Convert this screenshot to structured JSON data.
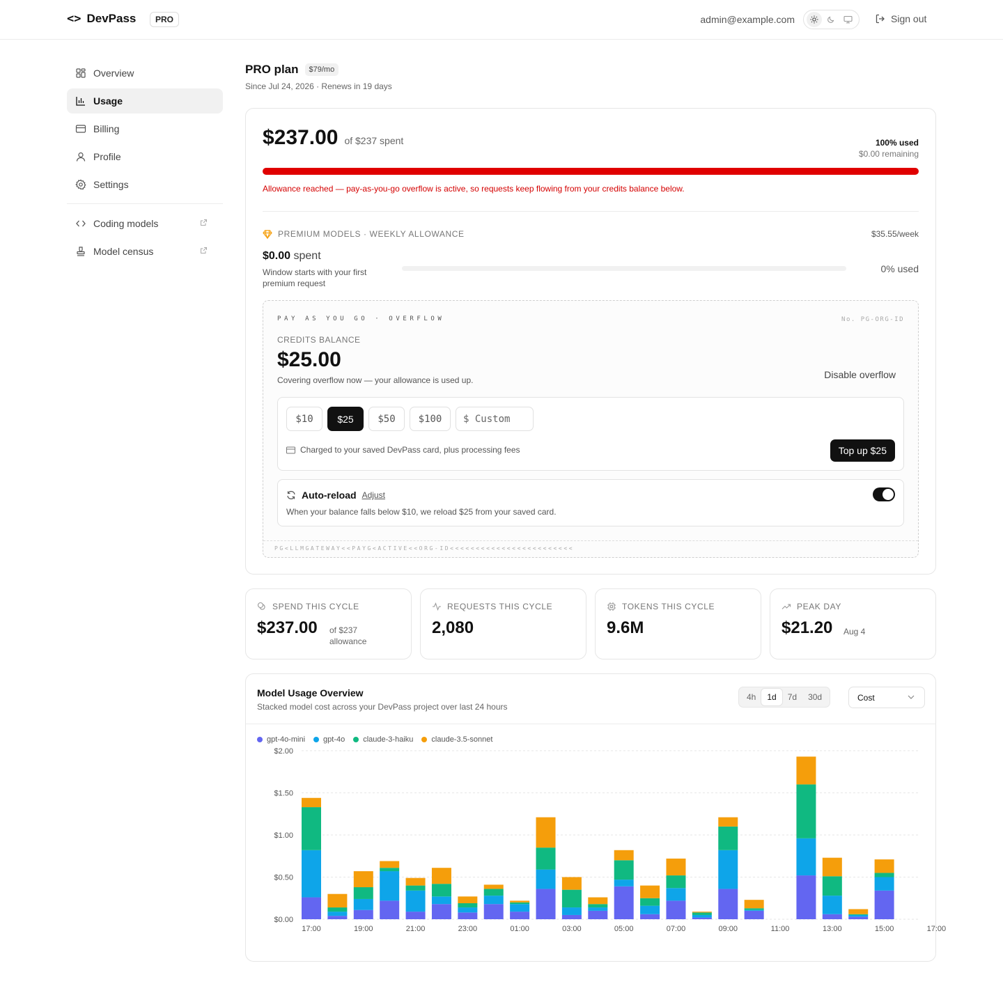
{
  "header": {
    "brand": "DevPass",
    "brand_icon": "code-brackets-icon",
    "plan_badge": "PRO",
    "user_email": "admin@example.com",
    "theme_options": [
      "sun-icon",
      "moon-icon",
      "monitor-icon"
    ],
    "theme_selected": "light",
    "sign_out": "Sign out"
  },
  "sidebar": {
    "items": [
      {
        "label": "Overview",
        "icon": "grid-icon",
        "active": false
      },
      {
        "label": "Usage",
        "icon": "bar-chart-icon",
        "active": true
      },
      {
        "label": "Billing",
        "icon": "credit-card-icon",
        "active": false
      },
      {
        "label": "Profile",
        "icon": "user-icon",
        "active": false
      },
      {
        "label": "Settings",
        "icon": "gear-icon",
        "active": false
      }
    ],
    "external": [
      {
        "label": "Coding models",
        "icon": "code-brackets-icon"
      },
      {
        "label": "Model census",
        "icon": "stamp-icon"
      }
    ]
  },
  "plan": {
    "title": "PRO plan",
    "price": "$79/mo",
    "subtitle": "Since Jul 24, 2026 · Renews in 19 days"
  },
  "usage": {
    "spent": "$237.00",
    "of_text": "of $237 spent",
    "used_pct": "100% used",
    "remaining": "$0.00 remaining",
    "fraction_used": 1.0,
    "bar_color": "#e00000",
    "alert": "Allowance reached — pay-as-you-go overflow is active, so requests keep flowing from your credits balance below."
  },
  "premium": {
    "label": "PREMIUM MODELS · WEEKLY ALLOWANCE",
    "rate": "$35.55/week",
    "spent_amount": "$0.00",
    "spent_word": "spent",
    "note": "Window starts with your first premium request",
    "used_pct": "0% used",
    "fraction_used": 0.0
  },
  "overflow": {
    "heading": "PAY AS YOU GO · OVERFLOW",
    "number": "No. PG-ORG-ID",
    "credits_label": "CREDITS BALANCE",
    "credits_amount": "$25.00",
    "credits_note": "Covering overflow now — your allowance is used up.",
    "disable": "Disable overflow",
    "amounts": [
      "$10",
      "$25",
      "$50",
      "$100"
    ],
    "selected_amount": "$25",
    "custom_placeholder": "$ Custom",
    "charge_note": "Charged to your saved DevPass card, plus processing fees",
    "topup_button": "Top up $25",
    "reload_title": "Auto-reload",
    "reload_adjust": "Adjust",
    "reload_note": "When your balance falls below $10, we reload $25 from your saved card.",
    "reload_enabled": true,
    "mrz": "PG<LLMGATEWAY<<PAYG<ACTIVE<<ORG-ID<<<<<<<<<<<<<<<<<<<<<<<<"
  },
  "stats": [
    {
      "label": "SPEND THIS CYCLE",
      "value": "$237.00",
      "sub": "of $237 allowance",
      "icon": "coins-icon"
    },
    {
      "label": "REQUESTS THIS CYCLE",
      "value": "2,080",
      "sub": "",
      "icon": "activity-icon"
    },
    {
      "label": "TOKENS THIS CYCLE",
      "value": "9.6M",
      "sub": "",
      "icon": "chip-icon"
    },
    {
      "label": "PEAK DAY",
      "value": "$21.20",
      "sub": "Aug 4",
      "icon": "trending-up-icon"
    }
  ],
  "chart": {
    "title": "Model Usage Overview",
    "subtitle": "Stacked model cost across your DevPass project over last 24 hours",
    "ranges": [
      "4h",
      "1d",
      "7d",
      "30d"
    ],
    "range_selected": "1d",
    "metric": "Cost"
  },
  "chart_data": {
    "type": "bar",
    "stacked": true,
    "x": [
      "17:00",
      "18:00",
      "19:00",
      "20:00",
      "21:00",
      "22:00",
      "23:00",
      "00:00",
      "01:00",
      "02:00",
      "03:00",
      "04:00",
      "05:00",
      "06:00",
      "07:00",
      "08:00",
      "09:00",
      "10:00",
      "11:00",
      "12:00",
      "13:00",
      "14:00",
      "15:00",
      "16:00"
    ],
    "x_tick_labels": [
      "17:00",
      "19:00",
      "21:00",
      "23:00",
      "01:00",
      "03:00",
      "05:00",
      "07:00",
      "09:00",
      "11:00",
      "13:00",
      "15:00",
      "17:00"
    ],
    "y_tick_labels": [
      "$0.00",
      "$0.50",
      "$1.00",
      "$1.50",
      "$2.00"
    ],
    "ylim": [
      0,
      2.0
    ],
    "grid": true,
    "legend_position": "top-left",
    "series": [
      {
        "name": "gpt-4o-mini",
        "color": "#6366f1",
        "values": [
          0.26,
          0.04,
          0.11,
          0.22,
          0.09,
          0.18,
          0.08,
          0.18,
          0.09,
          0.36,
          0.05,
          0.1,
          0.39,
          0.06,
          0.22,
          0.02,
          0.36,
          0.1,
          0,
          0.52,
          0.06,
          0.03,
          0.34,
          0
        ]
      },
      {
        "name": "gpt-4o",
        "color": "#0ea5e9",
        "values": [
          0.56,
          0.05,
          0.13,
          0.35,
          0.25,
          0.09,
          0.06,
          0.1,
          0.09,
          0.23,
          0.09,
          0.04,
          0.08,
          0.1,
          0.15,
          0.03,
          0.46,
          0.01,
          0,
          0.44,
          0.22,
          0.02,
          0.16,
          0
        ]
      },
      {
        "name": "claude-3-haiku",
        "color": "#10b981",
        "values": [
          0.51,
          0.05,
          0.14,
          0.04,
          0.06,
          0.15,
          0.05,
          0.08,
          0.02,
          0.26,
          0.21,
          0.04,
          0.23,
          0.09,
          0.15,
          0.03,
          0.28,
          0.02,
          0,
          0.64,
          0.23,
          0.01,
          0.05,
          0
        ]
      },
      {
        "name": "claude-3.5-sonnet",
        "color": "#f59e0b",
        "values": [
          0.11,
          0.16,
          0.19,
          0.08,
          0.09,
          0.19,
          0.08,
          0.05,
          0.02,
          0.36,
          0.15,
          0.08,
          0.12,
          0.15,
          0.2,
          0.01,
          0.11,
          0.1,
          0,
          0.33,
          0.22,
          0.06,
          0.16,
          0
        ]
      }
    ]
  }
}
